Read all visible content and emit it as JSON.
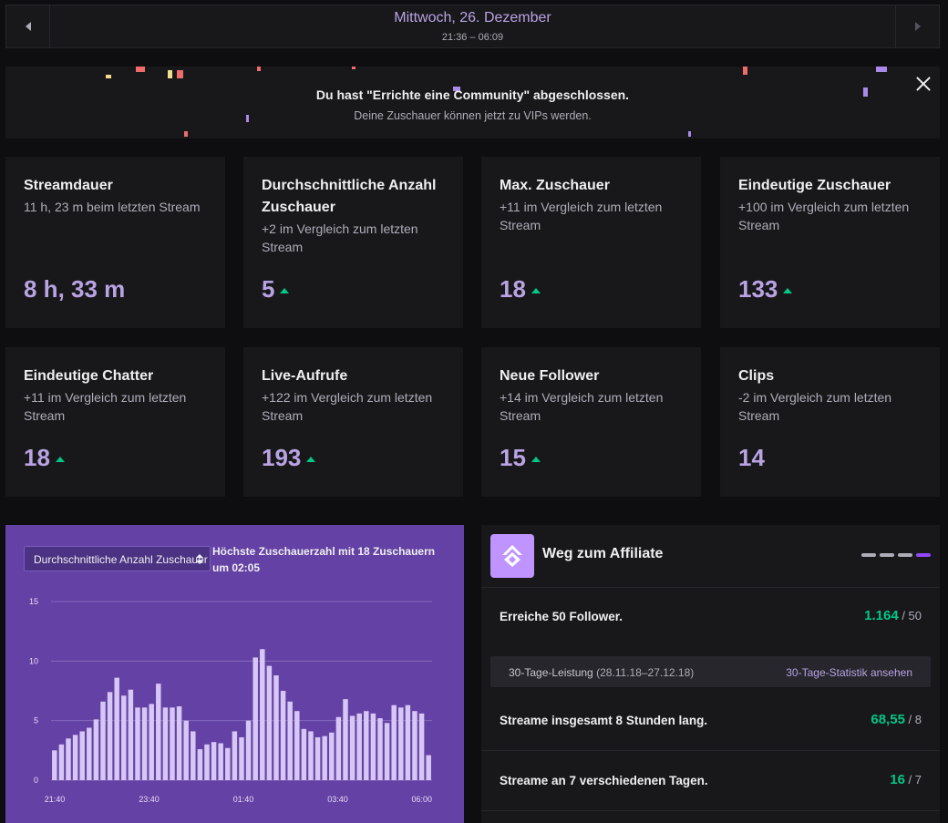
{
  "date_nav": {
    "title": "Mittwoch, 26. Dezember",
    "time_range": "21:36 – 06:09"
  },
  "achievement": {
    "title": "Du hast \"Errichte eine Community\" abgeschlossen.",
    "subtitle": "Deine Zuschauer können jetzt zu VIPs werden."
  },
  "stats_row1": [
    {
      "title": "Streamdauer",
      "sub": "11 h, 23 m beim letzten Stream",
      "value": "8 h, 33 m",
      "trend": "none"
    },
    {
      "title": "Durchschnittliche Anzahl Zuschauer",
      "sub": "+2 im Vergleich zum letzten Stream",
      "value": "5",
      "trend": "up"
    },
    {
      "title": "Max. Zuschauer",
      "sub": "+11 im Vergleich zum letzten Stream",
      "value": "18",
      "trend": "up"
    },
    {
      "title": "Eindeutige Zuschauer",
      "sub": "+100 im Vergleich zum letzten Stream",
      "value": "133",
      "trend": "up"
    }
  ],
  "stats_row2": [
    {
      "title": "Eindeutige Chatter",
      "sub": "+11 im Vergleich zum letzten Stream",
      "value": "18",
      "trend": "up"
    },
    {
      "title": "Live-Aufrufe",
      "sub": "+122 im Vergleich zum letzten Stream",
      "value": "193",
      "trend": "up"
    },
    {
      "title": "Neue Follower",
      "sub": "+14 im Vergleich zum letzten Stream",
      "value": "15",
      "trend": "up"
    },
    {
      "title": "Clips",
      "sub": "-2 im Vergleich zum letzten Stream",
      "value": "14",
      "trend": "none"
    }
  ],
  "chart_panel": {
    "select_value": "Durchschnittliche Anzahl Zuschauer",
    "note_prefix": "Höchste Zuschauerzahl mit ",
    "note_bold": "18 Zuschauern",
    "note_suffix": " um 02:05"
  },
  "chart_data": {
    "type": "bar",
    "ylim": [
      0,
      15
    ],
    "yticks": [
      "15",
      "10",
      "5",
      "0"
    ],
    "xticks": [
      "21:40",
      "23:40",
      "01:40",
      "03:40",
      "06:00"
    ],
    "values": [
      2.5,
      3,
      3.5,
      3.8,
      4.1,
      4.4,
      5.1,
      6.6,
      7.4,
      8.6,
      7.1,
      7.6,
      6.1,
      6.1,
      6.4,
      8.1,
      6.1,
      6.1,
      6.2,
      5.0,
      4.1,
      2.6,
      3.0,
      3.2,
      3.1,
      2.7,
      4.1,
      3.6,
      5.0,
      10.3,
      11.0,
      9.6,
      8.8,
      7.5,
      6.6,
      5.8,
      4.3,
      4.1,
      3.6,
      3.7,
      4.0,
      5.3,
      6.8,
      5.4,
      5.6,
      5.8,
      5.6,
      5.2,
      4.8,
      6.3,
      6.1,
      6.3,
      5.8,
      5.6,
      2.1
    ],
    "color": "#d7c7f5",
    "gridline_color": "#8468bd"
  },
  "affiliate": {
    "title": "Weg zum Affiliate",
    "rows": [
      {
        "label": "Erreiche 50 Follower.",
        "value": "1.164",
        "target": " / 50"
      },
      {
        "label": "Streame insgesamt 8 Stunden lang.",
        "value": "68,55",
        "target": " / 8"
      },
      {
        "label": "Streame an 7 verschiedenen Tagen.",
        "value": "16",
        "target": " / 7"
      }
    ],
    "performance_label": "30-Tage-Leistung",
    "performance_range": " (28.11.18–27.12.18)",
    "performance_link": "30-Tage-Statistik ansehen"
  },
  "colors": {
    "accent": "#b9a3e3",
    "positive": "#00c784",
    "brand": "#6441a4"
  }
}
